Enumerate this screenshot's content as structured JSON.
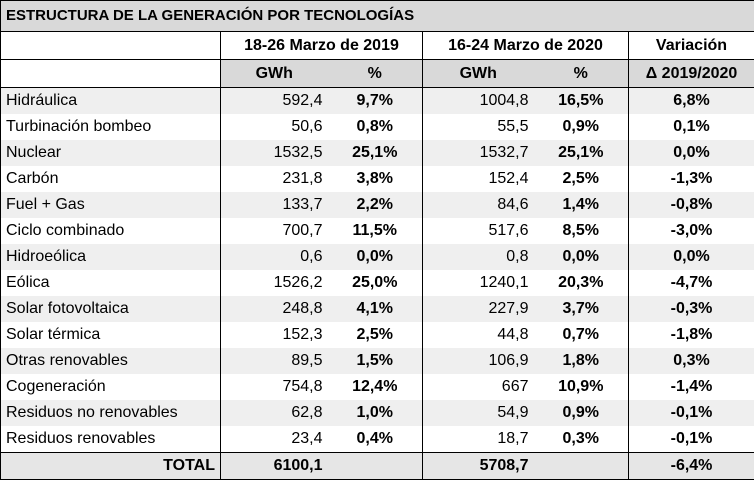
{
  "title": "ESTRUCTURA DE LA GENERACIÓN POR TECNOLOGÍAS",
  "headers": {
    "period1": "18-26 Marzo de 2019",
    "period2": "16-24 Marzo de 2020",
    "variation": "Variación",
    "gwh": "GWh",
    "pct": "%",
    "delta": "Δ 2019/2020"
  },
  "rows": [
    {
      "label": "Hidráulica",
      "gwh1": "592,4",
      "pct1": "9,7%",
      "gwh2": "1004,8",
      "pct2": "16,5%",
      "var": "6,8%"
    },
    {
      "label": "Turbinación bombeo",
      "gwh1": "50,6",
      "pct1": "0,8%",
      "gwh2": "55,5",
      "pct2": "0,9%",
      "var": "0,1%"
    },
    {
      "label": "Nuclear",
      "gwh1": "1532,5",
      "pct1": "25,1%",
      "gwh2": "1532,7",
      "pct2": "25,1%",
      "var": "0,0%"
    },
    {
      "label": "Carbón",
      "gwh1": "231,8",
      "pct1": "3,8%",
      "gwh2": "152,4",
      "pct2": "2,5%",
      "var": "-1,3%"
    },
    {
      "label": "Fuel + Gas",
      "gwh1": "133,7",
      "pct1": "2,2%",
      "gwh2": "84,6",
      "pct2": "1,4%",
      "var": "-0,8%"
    },
    {
      "label": "Ciclo combinado",
      "gwh1": "700,7",
      "pct1": "11,5%",
      "gwh2": "517,6",
      "pct2": "8,5%",
      "var": "-3,0%"
    },
    {
      "label": "Hidroeólica",
      "gwh1": "0,6",
      "pct1": "0,0%",
      "gwh2": "0,8",
      "pct2": "0,0%",
      "var": "0,0%"
    },
    {
      "label": "Eólica",
      "gwh1": "1526,2",
      "pct1": "25,0%",
      "gwh2": "1240,1",
      "pct2": "20,3%",
      "var": "-4,7%"
    },
    {
      "label": "Solar fotovoltaica",
      "gwh1": "248,8",
      "pct1": "4,1%",
      "gwh2": "227,9",
      "pct2": "3,7%",
      "var": "-0,3%"
    },
    {
      "label": "Solar térmica",
      "gwh1": "152,3",
      "pct1": "2,5%",
      "gwh2": "44,8",
      "pct2": "0,7%",
      "var": "-1,8%"
    },
    {
      "label": "Otras renovables",
      "gwh1": "89,5",
      "pct1": "1,5%",
      "gwh2": "106,9",
      "pct2": "1,8%",
      "var": "0,3%"
    },
    {
      "label": "Cogeneración",
      "gwh1": "754,8",
      "pct1": "12,4%",
      "gwh2": "667",
      "pct2": "10,9%",
      "var": "-1,4%"
    },
    {
      "label": "Residuos no renovables",
      "gwh1": "62,8",
      "pct1": "1,0%",
      "gwh2": "54,9",
      "pct2": "0,9%",
      "var": "-0,1%"
    },
    {
      "label": "Residuos renovables",
      "gwh1": "23,4",
      "pct1": "0,4%",
      "gwh2": "18,7",
      "pct2": "0,3%",
      "var": "-0,1%"
    }
  ],
  "total": {
    "label": "TOTAL",
    "gwh1": "6100,1",
    "pct1": "",
    "gwh2": "5708,7",
    "pct2": "",
    "var": "-6,4%"
  }
}
